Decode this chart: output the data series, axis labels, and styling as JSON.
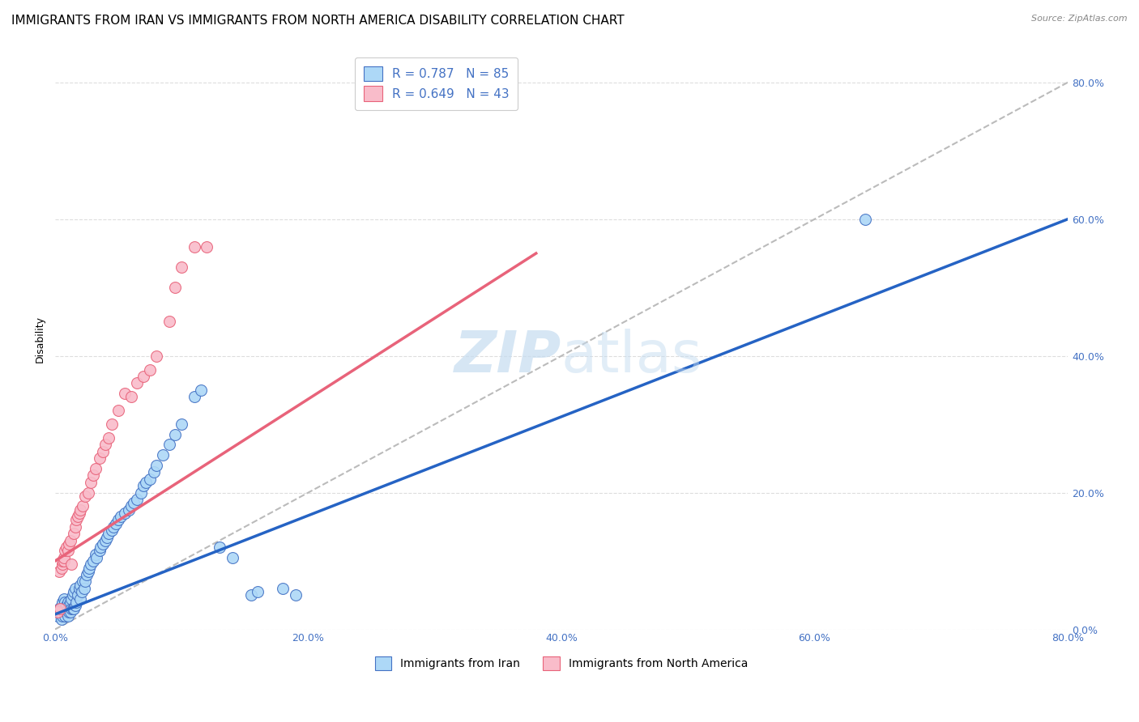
{
  "title": "IMMIGRANTS FROM IRAN VS IMMIGRANTS FROM NORTH AMERICA DISABILITY CORRELATION CHART",
  "source": "Source: ZipAtlas.com",
  "ylabel": "Disability",
  "x_min": 0.0,
  "x_max": 0.8,
  "y_min": 0.0,
  "y_max": 0.85,
  "x_ticks": [
    0.0,
    0.2,
    0.4,
    0.6,
    0.8
  ],
  "y_ticks": [
    0.0,
    0.2,
    0.4,
    0.6,
    0.8
  ],
  "blue_R": 0.787,
  "blue_N": 85,
  "pink_R": 0.649,
  "pink_N": 43,
  "blue_color": "#ADD8F7",
  "pink_color": "#F9BCCA",
  "blue_edge_color": "#4472C4",
  "pink_edge_color": "#E8637A",
  "blue_line_color": "#2563C4",
  "pink_line_color": "#E8637A",
  "diagonal_color": "#BBBBBB",
  "watermark_color": "#C5DCF0",
  "blue_scatter_x": [
    0.002,
    0.003,
    0.003,
    0.004,
    0.004,
    0.005,
    0.005,
    0.005,
    0.006,
    0.006,
    0.006,
    0.007,
    0.007,
    0.007,
    0.008,
    0.008,
    0.008,
    0.009,
    0.009,
    0.01,
    0.01,
    0.01,
    0.011,
    0.011,
    0.012,
    0.012,
    0.013,
    0.013,
    0.014,
    0.014,
    0.015,
    0.015,
    0.016,
    0.016,
    0.017,
    0.018,
    0.019,
    0.02,
    0.02,
    0.021,
    0.022,
    0.023,
    0.024,
    0.025,
    0.026,
    0.027,
    0.028,
    0.03,
    0.032,
    0.033,
    0.035,
    0.036,
    0.038,
    0.04,
    0.041,
    0.042,
    0.045,
    0.046,
    0.048,
    0.05,
    0.052,
    0.055,
    0.058,
    0.06,
    0.062,
    0.065,
    0.068,
    0.07,
    0.072,
    0.075,
    0.078,
    0.08,
    0.085,
    0.09,
    0.095,
    0.1,
    0.11,
    0.115,
    0.13,
    0.14,
    0.155,
    0.16,
    0.18,
    0.19,
    0.64
  ],
  "blue_scatter_y": [
    0.02,
    0.025,
    0.03,
    0.025,
    0.03,
    0.015,
    0.025,
    0.035,
    0.02,
    0.03,
    0.04,
    0.025,
    0.035,
    0.045,
    0.02,
    0.03,
    0.04,
    0.025,
    0.035,
    0.02,
    0.03,
    0.04,
    0.025,
    0.035,
    0.025,
    0.04,
    0.03,
    0.045,
    0.03,
    0.05,
    0.03,
    0.055,
    0.035,
    0.06,
    0.04,
    0.05,
    0.06,
    0.045,
    0.065,
    0.055,
    0.07,
    0.06,
    0.07,
    0.08,
    0.085,
    0.09,
    0.095,
    0.1,
    0.11,
    0.105,
    0.115,
    0.12,
    0.125,
    0.13,
    0.135,
    0.14,
    0.145,
    0.15,
    0.155,
    0.16,
    0.165,
    0.17,
    0.175,
    0.18,
    0.185,
    0.19,
    0.2,
    0.21,
    0.215,
    0.22,
    0.23,
    0.24,
    0.255,
    0.27,
    0.285,
    0.3,
    0.34,
    0.35,
    0.12,
    0.105,
    0.05,
    0.055,
    0.06,
    0.05,
    0.6
  ],
  "pink_scatter_x": [
    0.002,
    0.003,
    0.004,
    0.005,
    0.006,
    0.006,
    0.007,
    0.007,
    0.008,
    0.009,
    0.01,
    0.011,
    0.012,
    0.013,
    0.015,
    0.016,
    0.017,
    0.018,
    0.019,
    0.02,
    0.022,
    0.024,
    0.026,
    0.028,
    0.03,
    0.032,
    0.035,
    0.038,
    0.04,
    0.042,
    0.045,
    0.05,
    0.055,
    0.06,
    0.065,
    0.07,
    0.075,
    0.08,
    0.09,
    0.095,
    0.1,
    0.11,
    0.12
  ],
  "pink_scatter_y": [
    0.025,
    0.085,
    0.03,
    0.09,
    0.095,
    0.1,
    0.1,
    0.105,
    0.115,
    0.12,
    0.115,
    0.125,
    0.13,
    0.095,
    0.14,
    0.15,
    0.16,
    0.165,
    0.17,
    0.175,
    0.18,
    0.195,
    0.2,
    0.215,
    0.225,
    0.235,
    0.25,
    0.26,
    0.27,
    0.28,
    0.3,
    0.32,
    0.345,
    0.34,
    0.36,
    0.37,
    0.38,
    0.4,
    0.45,
    0.5,
    0.53,
    0.56,
    0.56
  ],
  "blue_line_x": [
    0.0,
    0.8
  ],
  "blue_line_y": [
    0.022,
    0.6
  ],
  "pink_line_x": [
    0.0,
    0.38
  ],
  "pink_line_y": [
    0.1,
    0.55
  ],
  "legend_label_blue": "Immigrants from Iran",
  "legend_label_pink": "Immigrants from North America",
  "title_fontsize": 11,
  "axis_label_fontsize": 9,
  "tick_fontsize": 9,
  "scatter_size": 100
}
